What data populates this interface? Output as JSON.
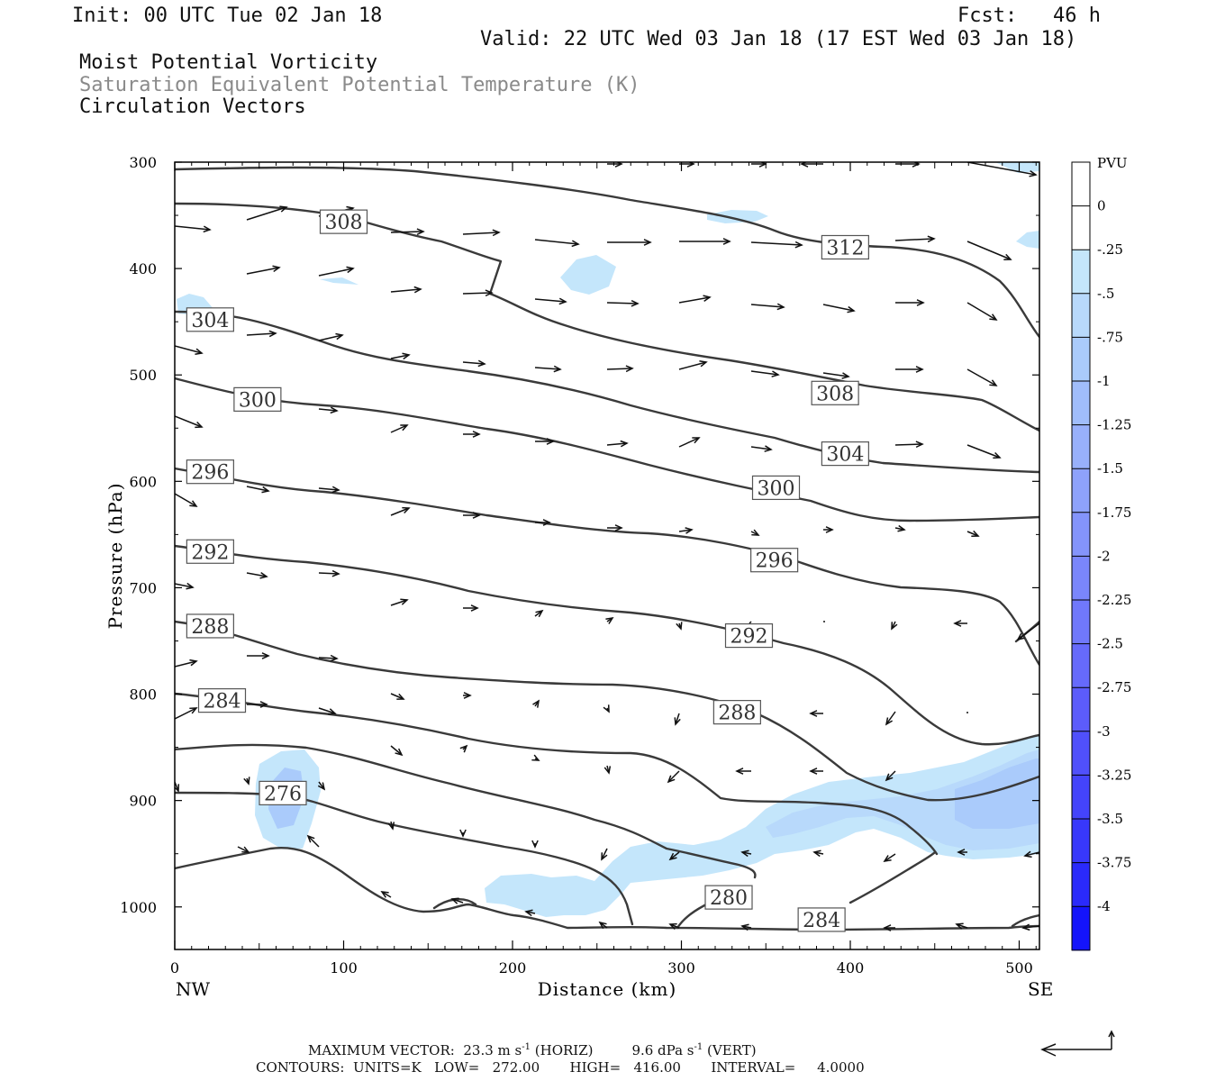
{
  "header": {
    "init": "Init: 00 UTC Tue 02 Jan 18",
    "fcst": "Fcst:   46 h",
    "valid": "Valid: 22 UTC Wed 03 Jan 18 (17 EST Wed 03 Jan 18)",
    "fields": [
      "Moist Potential Vorticity",
      "Saturation Equivalent Potential Temperature (K)",
      "Circulation Vectors"
    ]
  },
  "chart_data": {
    "type": "cross-section",
    "xlabel": "Distance (km)",
    "ylabel": "Pressure (hPa)",
    "xlim": [
      0,
      512
    ],
    "ylim": [
      1040,
      300
    ],
    "x_ticks": [
      "0",
      "100",
      "200",
      "300",
      "400",
      "500"
    ],
    "y_ticks": [
      "300",
      "400",
      "500",
      "600",
      "700",
      "800",
      "900",
      "1000"
    ],
    "x_endpoints": [
      "NW",
      "SE"
    ],
    "contour_units": "K",
    "contour_labels": [
      {
        "value": "308",
        "x": 100,
        "p": 356
      },
      {
        "value": "312",
        "x": 397,
        "p": 380
      },
      {
        "value": "304",
        "x": 21,
        "p": 448
      },
      {
        "value": "300",
        "x": 49,
        "p": 523
      },
      {
        "value": "308",
        "x": 391,
        "p": 517
      },
      {
        "value": "296",
        "x": 21,
        "p": 591
      },
      {
        "value": "304",
        "x": 397,
        "p": 574
      },
      {
        "value": "300",
        "x": 356,
        "p": 606
      },
      {
        "value": "292",
        "x": 21,
        "p": 666
      },
      {
        "value": "296",
        "x": 355,
        "p": 674
      },
      {
        "value": "288",
        "x": 21,
        "p": 736
      },
      {
        "value": "292",
        "x": 340,
        "p": 745
      },
      {
        "value": "284",
        "x": 28,
        "p": 806
      },
      {
        "value": "288",
        "x": 333,
        "p": 817
      },
      {
        "value": "276",
        "x": 64,
        "p": 893
      },
      {
        "value": "280",
        "x": 328,
        "p": 991
      },
      {
        "value": "284",
        "x": 383,
        "p": 1012
      }
    ],
    "colorbar": {
      "label": "PVU",
      "ticks": [
        "0",
        "-.25",
        "-.5",
        "-.75",
        "-1",
        "-1.25",
        "-1.5",
        "-1.75",
        "-2",
        "-2.25",
        "-2.5",
        "-2.75",
        "-3",
        "-3.25",
        "-3.5",
        "-3.75",
        "-4"
      ],
      "colors": [
        "#ffffff",
        "#ffffff",
        "#c4e6fb",
        "#b8d9fb",
        "#aacbfb",
        "#a0bdfb",
        "#98b0fb",
        "#8ea2fb",
        "#8494fb",
        "#7a86fb",
        "#7078fb",
        "#666afb",
        "#5c5cfb",
        "#5050fb",
        "#4444fb",
        "#3838fb",
        "#2a2afb",
        "#1414fb"
      ]
    }
  },
  "footer": {
    "max_vector_label": "MAXIMUM VECTOR:",
    "max_vector_horiz": "23.3 m s",
    "horiz_tag": "(HORIZ)",
    "max_vector_vert": "9.6 dPa s",
    "vert_tag": "(VERT)",
    "exp": "-1",
    "contours_label": "CONTOURS:",
    "units": "UNITS=K",
    "low": "LOW=   272.00",
    "high": "HIGH=   416.00",
    "interval": "INTERVAL=     4.0000"
  }
}
